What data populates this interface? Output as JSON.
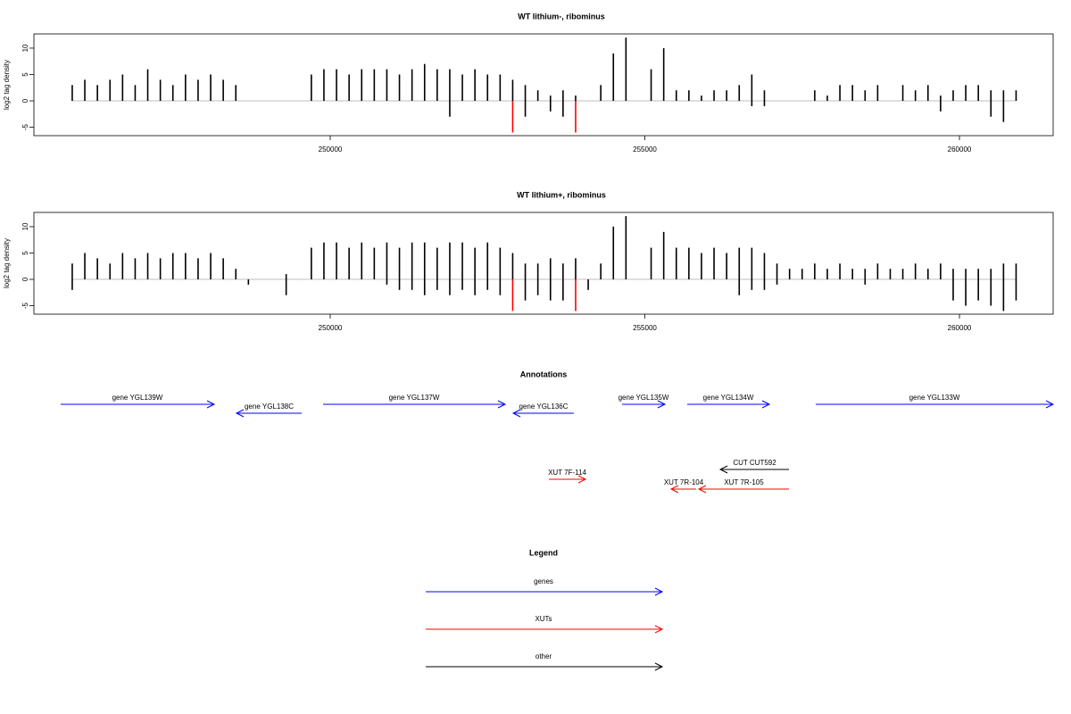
{
  "chart_data": [
    {
      "type": "bar",
      "title": "WT lithium-, ribominus",
      "y_label": "log2 tag density",
      "x": [
        245900,
        246100,
        246300,
        246500,
        246700,
        246900,
        247100,
        247300,
        247500,
        247700,
        247900,
        248100,
        248300,
        248500,
        248700,
        248900,
        249100,
        249300,
        249500,
        249700,
        249900,
        250100,
        250300,
        250500,
        250700,
        250900,
        251100,
        251300,
        251500,
        251700,
        251900,
        252100,
        252300,
        252500,
        252700,
        252900,
        253100,
        253300,
        253500,
        253700,
        253900,
        254100,
        254300,
        254500,
        254700,
        254900,
        255100,
        255300,
        255500,
        255700,
        255900,
        256100,
        256300,
        256500,
        256700,
        256900,
        257100,
        257300,
        257500,
        257700,
        257900,
        258100,
        258300,
        258500,
        258700,
        258900,
        259100,
        259300,
        259500,
        259700,
        259900,
        260100,
        260300,
        260500,
        260700,
        260900
      ],
      "series": [
        {
          "color": "#000000",
          "values": [
            3,
            4,
            3,
            4,
            5,
            3,
            6,
            4,
            3,
            5,
            4,
            5,
            4,
            3,
            0,
            0,
            0,
            0,
            0,
            5,
            6,
            6,
            5,
            6,
            6,
            6,
            5,
            6,
            7,
            6,
            6,
            5,
            6,
            5,
            5,
            4,
            3,
            2,
            1,
            2,
            1,
            0,
            3,
            9,
            12,
            0,
            6,
            10,
            2,
            2,
            1,
            2,
            2,
            3,
            5,
            2,
            0,
            0,
            0,
            2,
            1,
            3,
            3,
            2,
            3,
            0,
            3,
            2,
            3,
            1,
            2,
            3,
            3,
            2,
            2,
            2
          ]
        },
        {
          "color": "#000000",
          "values": [
            0,
            0,
            0,
            0,
            0,
            0,
            0,
            0,
            0,
            0,
            0,
            0,
            0,
            0,
            0,
            0,
            0,
            0,
            0,
            0,
            0,
            0,
            0,
            0,
            0,
            0,
            0,
            0,
            0,
            0,
            -3,
            0,
            0,
            0,
            0,
            0,
            -3,
            0,
            -2,
            -3,
            0,
            0,
            0,
            0,
            0,
            0,
            0,
            0,
            0,
            0,
            0,
            0,
            0,
            0,
            -1,
            -1,
            0,
            0,
            0,
            0,
            0,
            0,
            0,
            0,
            0,
            0,
            0,
            0,
            0,
            -2,
            0,
            0,
            0,
            -3,
            -4,
            0
          ]
        },
        {
          "color": "#ff0000",
          "values": [
            null,
            null,
            null,
            null,
            null,
            null,
            null,
            null,
            null,
            null,
            null,
            null,
            null,
            null,
            null,
            null,
            null,
            null,
            null,
            null,
            null,
            null,
            null,
            null,
            null,
            null,
            null,
            null,
            null,
            null,
            null,
            null,
            null,
            null,
            null,
            -6,
            null,
            null,
            null,
            null,
            -6,
            null,
            null,
            null,
            null,
            null,
            null,
            null,
            null,
            null,
            null,
            null,
            null,
            null,
            null,
            null,
            null,
            null,
            null,
            null,
            null,
            null,
            null,
            null,
            null,
            null,
            null,
            null,
            null,
            null,
            null,
            null,
            null,
            null,
            null,
            null
          ]
        }
      ],
      "xlim": [
        245291,
        261489
      ],
      "xticks": [
        250000,
        255000,
        260000
      ],
      "ylim": [
        -6.6,
        12.7
      ],
      "yticks": [
        -5,
        0,
        5,
        10
      ]
    },
    {
      "type": "bar",
      "title": "WT lithium+, ribominus",
      "y_label": "log2 tag density",
      "x": [
        245900,
        246100,
        246300,
        246500,
        246700,
        246900,
        247100,
        247300,
        247500,
        247700,
        247900,
        248100,
        248300,
        248500,
        248700,
        248900,
        249100,
        249300,
        249500,
        249700,
        249900,
        250100,
        250300,
        250500,
        250700,
        250900,
        251100,
        251300,
        251500,
        251700,
        251900,
        252100,
        252300,
        252500,
        252700,
        252900,
        253100,
        253300,
        253500,
        253700,
        253900,
        254100,
        254300,
        254500,
        254700,
        254900,
        255100,
        255300,
        255500,
        255700,
        255900,
        256100,
        256300,
        256500,
        256700,
        256900,
        257100,
        257300,
        257500,
        257700,
        257900,
        258100,
        258300,
        258500,
        258700,
        258900,
        259100,
        259300,
        259500,
        259700,
        259900,
        260100,
        260300,
        260500,
        260700,
        260900
      ],
      "series": [
        {
          "color": "#000000",
          "values": [
            3,
            5,
            4,
            3,
            5,
            4,
            5,
            4,
            5,
            5,
            4,
            5,
            4,
            2,
            0,
            0,
            0,
            1,
            0,
            6,
            7,
            7,
            6,
            7,
            6,
            7,
            6,
            7,
            7,
            6,
            7,
            7,
            6,
            7,
            6,
            5,
            3,
            3,
            4,
            3,
            4,
            0,
            3,
            10,
            12,
            0,
            6,
            9,
            6,
            6,
            5,
            6,
            5,
            6,
            6,
            5,
            3,
            2,
            2,
            3,
            2,
            3,
            2,
            2,
            3,
            2,
            2,
            3,
            2,
            3,
            2,
            2,
            2,
            2,
            3,
            3
          ]
        },
        {
          "color": "#000000",
          "values": [
            -2,
            0,
            0,
            0,
            0,
            0,
            0,
            0,
            0,
            0,
            0,
            0,
            0,
            0,
            -1,
            0,
            0,
            -3,
            0,
            0,
            0,
            0,
            0,
            0,
            0,
            -1,
            -2,
            -2,
            -3,
            -2,
            -3,
            -2,
            -3,
            -2,
            -3,
            0,
            -4,
            -3,
            -4,
            -4,
            0,
            -2,
            0,
            0,
            0,
            0,
            0,
            0,
            0,
            0,
            0,
            0,
            0,
            -3,
            -2,
            -2,
            -1,
            0,
            0,
            0,
            0,
            0,
            0,
            -1,
            0,
            0,
            0,
            0,
            0,
            0,
            -4,
            -5,
            -4,
            -5,
            -6,
            -4
          ]
        },
        {
          "color": "#ff0000",
          "values": [
            null,
            null,
            null,
            null,
            null,
            null,
            null,
            null,
            null,
            null,
            null,
            null,
            null,
            null,
            null,
            null,
            null,
            null,
            null,
            null,
            null,
            null,
            null,
            null,
            null,
            null,
            null,
            null,
            null,
            null,
            null,
            null,
            null,
            null,
            null,
            -6,
            null,
            null,
            null,
            null,
            -6,
            null,
            null,
            null,
            null,
            null,
            null,
            null,
            null,
            null,
            null,
            null,
            null,
            null,
            null,
            null,
            null,
            null,
            null,
            null,
            null,
            null,
            null,
            null,
            null,
            null,
            null,
            null,
            null,
            null,
            null,
            null,
            null,
            null,
            null,
            null
          ]
        }
      ],
      "xlim": [
        245291,
        261489
      ],
      "xticks": [
        250000,
        255000,
        260000
      ],
      "ylim": [
        -6.6,
        12.7
      ],
      "yticks": [
        -5,
        0,
        5,
        10
      ]
    }
  ],
  "annotations": {
    "title": "Annotations",
    "features": [
      {
        "label": "gene YGL139W",
        "start": 245716,
        "end": 248156,
        "strand": "+",
        "color": "#0000ff"
      },
      {
        "label": "gene YGL138C",
        "start": 248511,
        "end": 249546,
        "strand": "-",
        "color": "#0000ff"
      },
      {
        "label": "gene YGL137W",
        "start": 249887,
        "end": 252780,
        "strand": "+",
        "color": "#0000ff"
      },
      {
        "label": "gene YGL136C",
        "start": 252908,
        "end": 253872,
        "strand": "-",
        "color": "#0000ff"
      },
      {
        "label": "gene YGL135W",
        "start": 254638,
        "end": 255319,
        "strand": "+",
        "color": "#0000ff"
      },
      {
        "label": "gene YGL134W",
        "start": 255674,
        "end": 256979,
        "strand": "+",
        "color": "#0000ff"
      },
      {
        "label": "gene YGL133W",
        "start": 257716,
        "end": 261489,
        "strand": "+",
        "color": "#0000ff"
      },
      {
        "label": "CUT CUT592",
        "start": 256199,
        "end": 257291,
        "strand": "-",
        "color": "#000000"
      },
      {
        "label": "XUT 7F-114",
        "start": 253475,
        "end": 254057,
        "strand": "+",
        "color": "#ff0000"
      },
      {
        "label": "XUT 7R-104",
        "start": 255418,
        "end": 255816,
        "strand": "-",
        "color": "#ff0000"
      },
      {
        "label": "XUT 7R-105",
        "start": 255858,
        "end": 257291,
        "strand": "-",
        "color": "#ff0000"
      }
    ]
  },
  "legend": {
    "title": "Legend",
    "items": [
      {
        "label": "genes",
        "color": "#0000ff"
      },
      {
        "label": "XUTs",
        "color": "#ff0000"
      },
      {
        "label": "other",
        "color": "#000000"
      }
    ]
  }
}
